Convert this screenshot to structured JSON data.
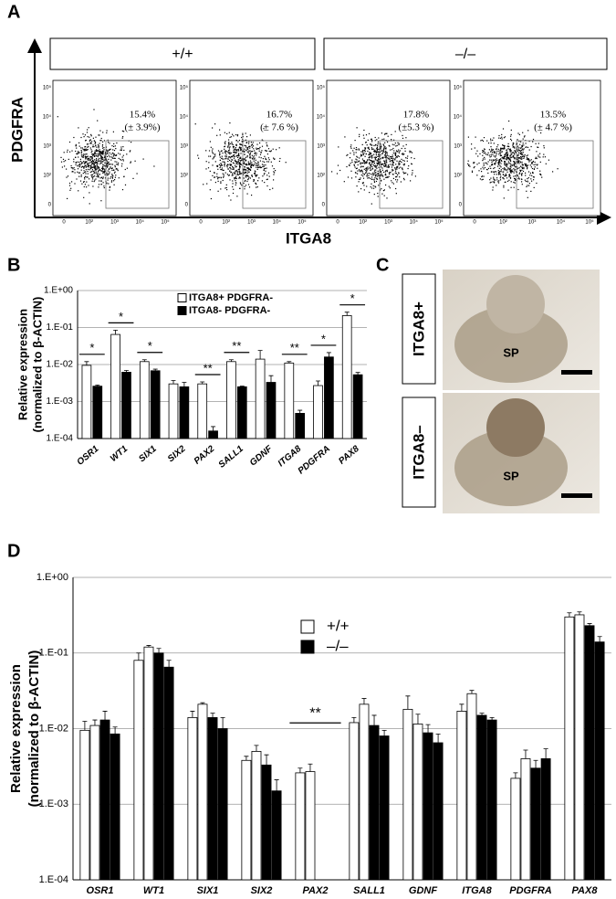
{
  "panel_labels": {
    "a": "A",
    "b": "B",
    "c": "C",
    "d": "D"
  },
  "panel_a": {
    "genotypes": [
      "+/+",
      "–/–"
    ],
    "y_label": "PDGFRA",
    "x_label": "ITGA8",
    "plots": [
      {
        "percent": "15.4%",
        "sd": "(± 3.9%)"
      },
      {
        "percent": "16.7%",
        "sd": "(± 7.6 %)"
      },
      {
        "percent": "17.8%",
        "sd": "(±5.3 %)"
      },
      {
        "percent": "13.5%",
        "sd": "(± 4.7 %)"
      }
    ],
    "xtick_labels": [
      "0",
      "10²",
      "10³",
      "10⁴",
      "10⁵"
    ],
    "ytick_labels": [
      "10⁵",
      "10⁴",
      "10³",
      "10²",
      "0"
    ]
  },
  "panel_c": {
    "labels": [
      "ITGA8+",
      "ITGA8–"
    ],
    "region": "SP"
  },
  "chart_data": [
    {
      "type": "bar",
      "log_scale": true,
      "grid": true,
      "legend": "top",
      "y_label": [
        "Relative expression",
        "(normalized to β-ACTIN)"
      ],
      "categories": [
        "OSR1",
        "WT1",
        "SIX1",
        "SIX2",
        "PAX2",
        "SALL1",
        "GDNF",
        "ITGA8",
        "PDGFRA",
        "PAX8"
      ],
      "ylim": [
        0.0001,
        1
      ],
      "yticks": [
        {
          "value": 1,
          "label": "1.E+00"
        },
        {
          "value": 0.1,
          "label": "1.E-01"
        },
        {
          "value": 0.01,
          "label": "1.E-02"
        },
        {
          "value": 0.001,
          "label": "1.E-03"
        },
        {
          "value": 0.0001,
          "label": "1.E-04"
        }
      ],
      "series": [
        {
          "name": "ITGA8+ PDGFRA-",
          "color": "#ffffff",
          "values": [
            0.0095,
            0.065,
            0.012,
            0.003,
            0.003,
            0.012,
            0.014,
            0.011,
            0.0027,
            0.21
          ],
          "errors": [
            0.0025,
            0.02,
            0.0015,
            0.0007,
            0.0004,
            0.0015,
            0.01,
            0.001,
            0.0009,
            0.05
          ]
        },
        {
          "name": "ITGA8- PDGFRA-",
          "color": "#000000",
          "values": [
            0.0026,
            0.0062,
            0.0068,
            0.0025,
            0.00016,
            0.0025,
            0.0033,
            0.00048,
            0.016,
            0.0053
          ],
          "errors": [
            0.0002,
            0.0007,
            0.0007,
            0.0008,
            5e-05,
            0.0001,
            0.0017,
            0.0001,
            0.005,
            0.0008
          ]
        }
      ],
      "significance": [
        {
          "category": "OSR1",
          "label": "*"
        },
        {
          "category": "WT1",
          "label": "*"
        },
        {
          "category": "SIX1",
          "label": "*"
        },
        {
          "category": "PAX2",
          "label": "**"
        },
        {
          "category": "SALL1",
          "label": "**"
        },
        {
          "category": "ITGA8",
          "label": "**"
        },
        {
          "category": "PDGFRA",
          "label": "*"
        },
        {
          "category": "PAX8",
          "label": "*"
        }
      ]
    },
    {
      "type": "bar",
      "log_scale": true,
      "grid": true,
      "legend": "top",
      "y_label": [
        "Relative expression",
        "(normalized to β-ACTIN)"
      ],
      "categories": [
        "OSR1",
        "WT1",
        "SIX1",
        "SIX2",
        "PAX2",
        "SALL1",
        "GDNF",
        "ITGA8",
        "PDGFRA",
        "PAX8"
      ],
      "ylim": [
        0.0001,
        1
      ],
      "yticks": [
        {
          "value": 1,
          "label": "1.E+00"
        },
        {
          "value": 0.1,
          "label": "1.E-01"
        },
        {
          "value": 0.01,
          "label": "1.E-02"
        },
        {
          "value": 0.001,
          "label": "1.E-03"
        },
        {
          "value": 0.0001,
          "label": "1.E-04"
        }
      ],
      "series": [
        {
          "name": "+/+",
          "color": "#ffffff",
          "values": [
            0.0095,
            0.08,
            0.014,
            0.0038,
            0.0026,
            0.012,
            0.018,
            0.017,
            0.0022,
            0.3
          ],
          "errors": [
            0.003,
            0.02,
            0.003,
            0.0005,
            0.0004,
            0.002,
            0.009,
            0.004,
            0.0004,
            0.04
          ]
        },
        {
          "color": "#ffffff",
          "values": [
            0.011,
            0.12,
            0.021,
            0.005,
            0.0027,
            0.021,
            0.0115,
            0.029,
            0.004,
            0.32
          ],
          "errors": [
            0.002,
            0.006,
            0.001,
            0.001,
            0.0007,
            0.004,
            0.004,
            0.003,
            0.0012,
            0.03
          ]
        },
        {
          "name": "–/–",
          "color": "#000000",
          "values": [
            0.013,
            0.1,
            0.014,
            0.0033,
            null,
            0.011,
            0.0088,
            0.015,
            0.003,
            0.23
          ],
          "errors": [
            0.004,
            0.015,
            0.002,
            0.0012,
            null,
            0.004,
            0.0025,
            0.001,
            0.0008,
            0.015
          ]
        },
        {
          "color": "#000000",
          "values": [
            0.0085,
            0.065,
            0.01,
            0.0015,
            null,
            0.008,
            0.0065,
            0.013,
            0.004,
            0.14
          ],
          "errors": [
            0.002,
            0.015,
            0.004,
            0.0006,
            null,
            0.0015,
            0.002,
            0.001,
            0.0014,
            0.025
          ]
        }
      ],
      "significance": [
        {
          "category": "PAX2",
          "label": "**"
        }
      ]
    }
  ]
}
